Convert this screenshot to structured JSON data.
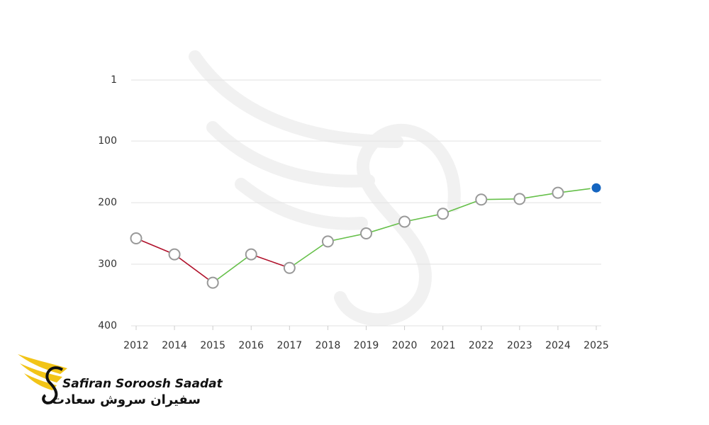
{
  "chart_data": {
    "type": "line",
    "categories": [
      "2012",
      "2014",
      "2015",
      "2016",
      "2017",
      "2018",
      "2019",
      "2020",
      "2021",
      "2022",
      "2023",
      "2024",
      "2025"
    ],
    "values": [
      258,
      284,
      330,
      284,
      306,
      263,
      250,
      231,
      218,
      195,
      194,
      184,
      176
    ],
    "ylim": [
      1,
      400
    ],
    "y_reversed": true,
    "yticks": [
      1,
      100,
      200,
      300,
      400
    ],
    "grid": true,
    "improve_color": "#66c04a",
    "decline_color": "#b0102a",
    "highlight_color": "#1565c0"
  },
  "logo": {
    "name": "Safiran Soroosh Saadat",
    "name_fa": "سفیران سروش سعادت"
  }
}
